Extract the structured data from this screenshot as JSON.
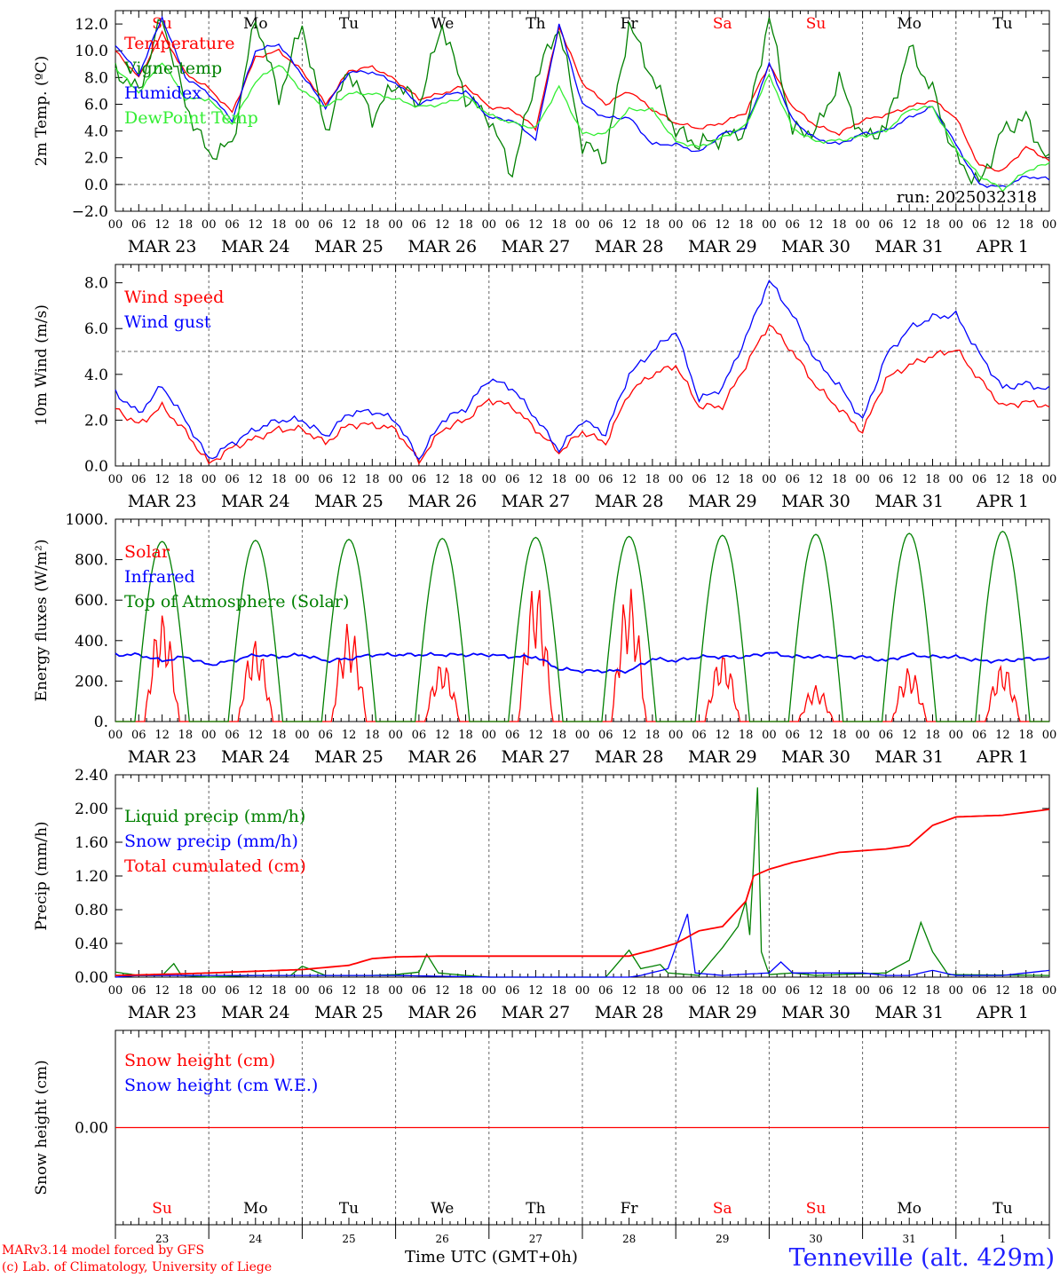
{
  "footer": {
    "credit_line1": "MARv3.14 model forced by GFS",
    "credit_line2": "(c) Lab. of Climatology, University of Liege",
    "xaxis_title": "Time UTC (GMT+0h)",
    "station": "Tenneville (alt. 429m)"
  },
  "colors": {
    "red": "#ff0000",
    "dark_green": "#008000",
    "blue": "#0000ff",
    "light_green": "#33ee33",
    "axis": "#000000",
    "grid": "#666666"
  },
  "chart_data": [
    {
      "id": "temperature",
      "type": "line",
      "ylabel": "2m Temp. (ºC)",
      "ylim": [
        -2,
        13
      ],
      "yticks": [
        -2,
        0,
        2,
        4,
        6,
        8,
        10,
        12
      ],
      "ytick_labels": [
        "−2.0",
        "0.0",
        "2.0",
        "4.0",
        "6.0",
        "8.0",
        "10.0",
        "12.0"
      ],
      "hline": 0,
      "day_names": [
        "Su",
        "Mo",
        "Tu",
        "We",
        "Th",
        "Fr",
        "Sa",
        "Su",
        "Mo",
        "Tu"
      ],
      "day_name_colors": [
        "red",
        "black",
        "black",
        "black",
        "black",
        "black",
        "red",
        "red",
        "black",
        "black"
      ],
      "annotation": "run: 2025032318",
      "legend_position": "top-left",
      "x_hours": [
        0,
        6,
        12,
        18,
        24,
        30,
        36,
        42,
        48,
        54,
        60,
        66,
        72,
        78,
        84,
        90,
        96,
        102,
        108,
        114,
        120,
        126,
        132,
        138,
        144,
        150,
        156,
        162,
        168,
        174,
        180,
        186,
        192,
        198,
        204,
        210,
        216,
        222,
        228,
        234,
        240
      ],
      "series": [
        {
          "name": "Temperature",
          "color": "red",
          "values": [
            10.0,
            8.0,
            11.3,
            8.3,
            7.2,
            5.4,
            9.5,
            10.0,
            8.5,
            6.0,
            8.5,
            8.8,
            7.8,
            6.4,
            6.8,
            7.4,
            5.8,
            5.6,
            4.2,
            11.8,
            7.6,
            6.0,
            7.0,
            5.6,
            4.6,
            4.2,
            4.6,
            5.4,
            9.0,
            5.8,
            4.4,
            3.8,
            4.8,
            5.2,
            5.8,
            6.3,
            5.0,
            1.4,
            1.0,
            2.8,
            1.8
          ]
        },
        {
          "name": "Vigne temp",
          "color": "dark_green",
          "values": [
            8.5,
            7.0,
            12.5,
            6.0,
            2.2,
            3.0,
            12.5,
            6.5,
            12.0,
            4.0,
            8.6,
            5.0,
            7.6,
            6.0,
            12.0,
            6.5,
            5.0,
            0.8,
            8.0,
            11.8,
            3.0,
            2.0,
            12.0,
            8.0,
            4.0,
            3.0,
            3.5,
            4.0,
            12.5,
            4.0,
            4.0,
            7.8,
            3.5,
            4.2,
            10.2,
            7.0,
            2.0,
            0.0,
            4.0,
            5.0,
            1.5
          ]
        },
        {
          "name": "Humidex",
          "color": "blue",
          "values": [
            10.5,
            8.2,
            12.5,
            8.0,
            6.8,
            4.8,
            10.0,
            10.5,
            8.2,
            5.8,
            8.4,
            8.4,
            7.6,
            6.0,
            6.6,
            7.0,
            5.0,
            4.8,
            3.4,
            12.0,
            6.0,
            5.0,
            5.0,
            3.0,
            3.0,
            2.4,
            3.8,
            4.2,
            9.0,
            4.8,
            3.4,
            3.0,
            3.8,
            4.0,
            5.0,
            5.8,
            3.0,
            0.0,
            -0.2,
            0.6,
            0.4
          ]
        },
        {
          "name": "DewPoint Temp",
          "color": "light_green",
          "values": [
            8.7,
            6.9,
            9.2,
            6.4,
            6.4,
            4.5,
            7.7,
            9.0,
            7.0,
            5.8,
            6.8,
            6.8,
            6.4,
            5.8,
            6.0,
            6.6,
            5.2,
            4.6,
            4.2,
            7.3,
            3.8,
            3.8,
            5.6,
            5.6,
            3.2,
            2.8,
            3.5,
            4.4,
            8.2,
            4.2,
            3.2,
            3.3,
            3.6,
            4.0,
            5.6,
            5.8,
            2.6,
            0.7,
            -0.4,
            1.0,
            1.6
          ]
        }
      ]
    },
    {
      "id": "wind",
      "type": "line",
      "ylabel": "10m Wind (m/s)",
      "ylim": [
        0,
        8.8
      ],
      "yticks": [
        0,
        2,
        4,
        6,
        8
      ],
      "ytick_labels": [
        "0.0",
        "2.0",
        "4.0",
        "6.0",
        "8.0"
      ],
      "hline": 5,
      "legend_position": "top-left",
      "x_hours": [
        0,
        6,
        12,
        18,
        24,
        30,
        36,
        42,
        48,
        54,
        60,
        66,
        72,
        78,
        84,
        90,
        96,
        102,
        108,
        114,
        120,
        126,
        132,
        138,
        144,
        150,
        156,
        162,
        168,
        174,
        180,
        186,
        192,
        198,
        204,
        210,
        216,
        222,
        228,
        234,
        240
      ],
      "series": [
        {
          "name": "Wind speed",
          "color": "red",
          "values": [
            2.5,
            1.8,
            2.6,
            1.5,
            0.1,
            0.8,
            1.2,
            1.6,
            1.6,
            1.0,
            1.8,
            1.8,
            1.6,
            0.2,
            1.6,
            2.0,
            2.9,
            2.6,
            1.6,
            0.6,
            1.5,
            1.0,
            3.2,
            4.0,
            4.4,
            2.6,
            2.6,
            4.4,
            6.2,
            5.0,
            3.5,
            2.5,
            1.5,
            3.8,
            4.4,
            4.8,
            5.1,
            3.8,
            2.6,
            2.8,
            2.6
          ]
        },
        {
          "name": "Wind gust",
          "color": "blue",
          "values": [
            3.2,
            2.3,
            3.5,
            2.0,
            0.3,
            1.0,
            1.6,
            2.0,
            2.0,
            1.3,
            2.3,
            2.4,
            2.0,
            0.3,
            2.0,
            2.5,
            3.8,
            3.4,
            2.1,
            0.7,
            2.0,
            1.4,
            4.0,
            5.0,
            5.9,
            2.9,
            3.4,
            5.6,
            8.1,
            6.6,
            4.6,
            3.5,
            2.0,
            4.8,
            6.0,
            6.5,
            6.6,
            4.9,
            3.4,
            3.6,
            3.3
          ]
        }
      ]
    },
    {
      "id": "energy",
      "type": "line",
      "ylabel": "Energy fluxes (W/m²)",
      "ylim": [
        0,
        1000
      ],
      "yticks": [
        0,
        200,
        400,
        600,
        800,
        1000
      ],
      "ytick_labels": [
        "0.",
        "200.",
        "400.",
        "600.",
        "800.",
        "1000."
      ],
      "legend_position": "top-left",
      "x_hours": [
        0,
        6,
        12,
        18,
        24,
        30,
        36,
        42,
        48,
        54,
        60,
        66,
        72,
        78,
        84,
        90,
        96,
        102,
        108,
        114,
        120,
        126,
        132,
        138,
        144,
        150,
        156,
        162,
        168,
        174,
        180,
        186,
        192,
        198,
        204,
        210,
        216,
        222,
        228,
        234,
        240
      ],
      "series": [
        {
          "name": "Solar",
          "color": "red",
          "daily_peaks": [
            540,
            410,
            490,
            300,
            700,
            670,
            340,
            180,
            270,
            290
          ]
        },
        {
          "name": "Infrared",
          "color": "blue",
          "values": [
            330,
            330,
            300,
            320,
            280,
            300,
            330,
            320,
            330,
            300,
            310,
            330,
            330,
            330,
            330,
            330,
            330,
            320,
            320,
            260,
            250,
            250,
            250,
            310,
            300,
            320,
            320,
            320,
            340,
            320,
            320,
            320,
            320,
            300,
            330,
            320,
            320,
            300,
            300,
            310,
            310
          ]
        },
        {
          "name": "Top of Atmosphere (Solar)",
          "color": "dark_green",
          "daily_peaks": [
            890,
            895,
            900,
            905,
            910,
            915,
            920,
            925,
            930,
            940
          ]
        }
      ]
    },
    {
      "id": "precip",
      "type": "line",
      "ylabel": "Precip (mm/h)",
      "ylim": [
        0,
        2.4
      ],
      "yticks": [
        0,
        0.4,
        0.8,
        1.2,
        1.6,
        2.0,
        2.4
      ],
      "ytick_labels": [
        "0.00",
        "0.40",
        "0.80",
        "1.20",
        "1.60",
        "2.00",
        "2.40"
      ],
      "legend_position": "top-left",
      "series": [
        {
          "name": "Liquid precip (mm/h)",
          "color": "dark_green",
          "points": [
            [
              0,
              0.06
            ],
            [
              6,
              0.02
            ],
            [
              12,
              0.02
            ],
            [
              15,
              0.16
            ],
            [
              17,
              0.02
            ],
            [
              24,
              0.0
            ],
            [
              36,
              0.02
            ],
            [
              45,
              0.02
            ],
            [
              48,
              0.13
            ],
            [
              54,
              0.02
            ],
            [
              66,
              0.02
            ],
            [
              72,
              0.03
            ],
            [
              78,
              0.06
            ],
            [
              80,
              0.27
            ],
            [
              83,
              0.05
            ],
            [
              90,
              0.02
            ],
            [
              96,
              0.0
            ],
            [
              120,
              0.0
            ],
            [
              126,
              0.0
            ],
            [
              132,
              0.32
            ],
            [
              135,
              0.1
            ],
            [
              140,
              0.15
            ],
            [
              142,
              0.05
            ],
            [
              150,
              0.02
            ],
            [
              156,
              0.35
            ],
            [
              160,
              0.6
            ],
            [
              162,
              0.9
            ],
            [
              163,
              0.5
            ],
            [
              165,
              2.25
            ],
            [
              166,
              0.3
            ],
            [
              168,
              0.03
            ],
            [
              174,
              0.05
            ],
            [
              180,
              0.02
            ],
            [
              198,
              0.05
            ],
            [
              204,
              0.2
            ],
            [
              207,
              0.65
            ],
            [
              210,
              0.3
            ],
            [
              214,
              0.03
            ],
            [
              240,
              0.02
            ]
          ]
        },
        {
          "name": "Snow precip (mm/h)",
          "color": "blue",
          "points": [
            [
              0,
              0.0
            ],
            [
              6,
              0.02
            ],
            [
              30,
              0.02
            ],
            [
              72,
              0.02
            ],
            [
              96,
              0.0
            ],
            [
              132,
              0.0
            ],
            [
              135,
              0.02
            ],
            [
              142,
              0.1
            ],
            [
              147,
              0.75
            ],
            [
              149,
              0.05
            ],
            [
              156,
              0.02
            ],
            [
              168,
              0.05
            ],
            [
              171,
              0.18
            ],
            [
              174,
              0.05
            ],
            [
              180,
              0.05
            ],
            [
              192,
              0.05
            ],
            [
              198,
              0.02
            ],
            [
              204,
              0.02
            ],
            [
              210,
              0.08
            ],
            [
              216,
              0.02
            ],
            [
              228,
              0.02
            ],
            [
              240,
              0.08
            ]
          ]
        },
        {
          "name": "Total cumulated (cm)",
          "color": "red",
          "points": [
            [
              0,
              0.02
            ],
            [
              18,
              0.04
            ],
            [
              36,
              0.07
            ],
            [
              48,
              0.09
            ],
            [
              60,
              0.14
            ],
            [
              66,
              0.22
            ],
            [
              72,
              0.24
            ],
            [
              84,
              0.25
            ],
            [
              132,
              0.25
            ],
            [
              138,
              0.32
            ],
            [
              144,
              0.4
            ],
            [
              150,
              0.55
            ],
            [
              156,
              0.6
            ],
            [
              162,
              0.9
            ],
            [
              164,
              1.2
            ],
            [
              168,
              1.28
            ],
            [
              174,
              1.36
            ],
            [
              186,
              1.48
            ],
            [
              198,
              1.52
            ],
            [
              204,
              1.56
            ],
            [
              210,
              1.8
            ],
            [
              216,
              1.9
            ],
            [
              228,
              1.92
            ],
            [
              240,
              1.99
            ]
          ]
        }
      ]
    },
    {
      "id": "snow",
      "type": "line",
      "ylabel": "Snow height (cm)",
      "yticks": [
        0
      ],
      "ytick_labels": [
        "0.00"
      ],
      "legend_position": "top-left",
      "day_names": [
        "Su",
        "Mo",
        "Tu",
        "We",
        "Th",
        "Fr",
        "Sa",
        "Su",
        "Mo",
        "Tu"
      ],
      "day_name_colors": [
        "red",
        "black",
        "black",
        "black",
        "black",
        "black",
        "red",
        "red",
        "black",
        "black"
      ],
      "day_numbers": [
        "23",
        "24",
        "25",
        "26",
        "27",
        "28",
        "29",
        "30",
        "31",
        "1"
      ],
      "series": [
        {
          "name": "Snow height (cm)",
          "color": "red",
          "values": [
            0,
            0
          ]
        },
        {
          "name": "Snow height (cm W.E.)",
          "color": "blue",
          "values": [
            0,
            0
          ]
        }
      ]
    }
  ],
  "xaxis": {
    "hour_labels": [
      "00",
      "06",
      "12",
      "18"
    ],
    "end_label": "00",
    "dates": [
      "MAR 23",
      "MAR 24",
      "MAR 25",
      "MAR 26",
      "MAR 27",
      "MAR 28",
      "MAR 29",
      "MAR 30",
      "MAR 31",
      "APR  1"
    ]
  }
}
